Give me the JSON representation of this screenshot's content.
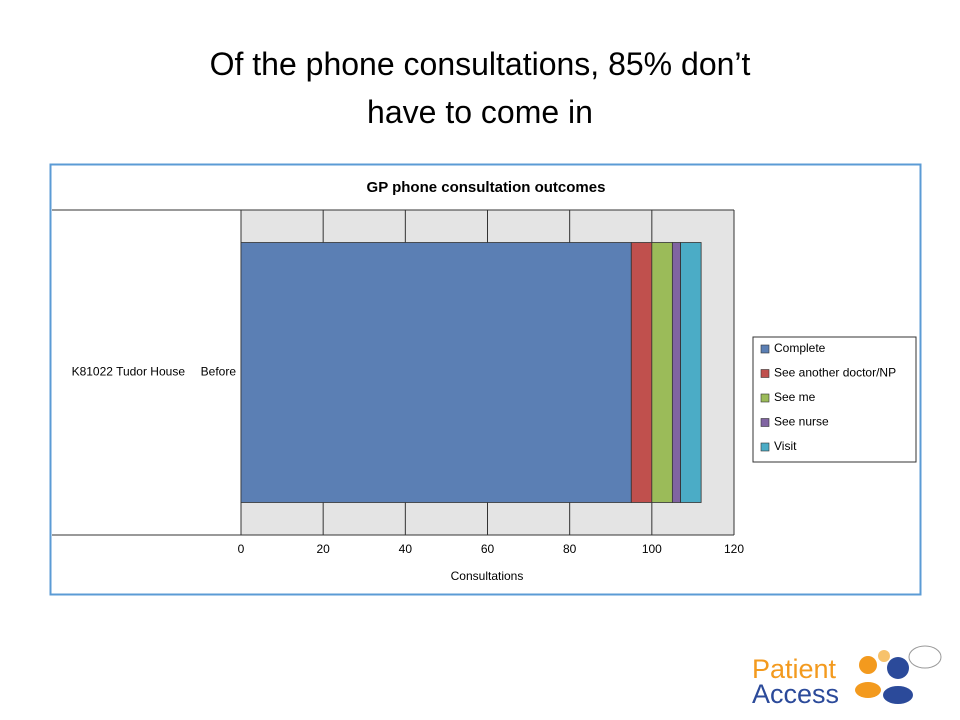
{
  "slide_title": {
    "lines": [
      "Of the phone consultations, 85% don’t",
      "have to come in"
    ]
  },
  "logo": {
    "line1": "Patient",
    "line2": "Access"
  },
  "chart_data": {
    "type": "bar",
    "orientation": "horizontal",
    "stacked": true,
    "title": "GP phone consultation outcomes",
    "x_label": "Consultations",
    "group": "K81022 Tudor House",
    "categories": [
      "Before"
    ],
    "series": [
      {
        "name": "Complete",
        "color": "#5b7fb4",
        "values": [
          95
        ]
      },
      {
        "name": "See another doctor/NP",
        "color": "#c0504d",
        "values": [
          5
        ]
      },
      {
        "name": "See me",
        "color": "#9bbb59",
        "values": [
          5
        ]
      },
      {
        "name": "See nurse",
        "color": "#8064a2",
        "values": [
          2
        ]
      },
      {
        "name": "Visit",
        "color": "#4bacc6",
        "values": [
          5
        ]
      }
    ],
    "xlim": [
      0,
      120
    ],
    "xticks": [
      0,
      20,
      40,
      60,
      80,
      100,
      120
    ],
    "grid": true,
    "legend": "right"
  }
}
